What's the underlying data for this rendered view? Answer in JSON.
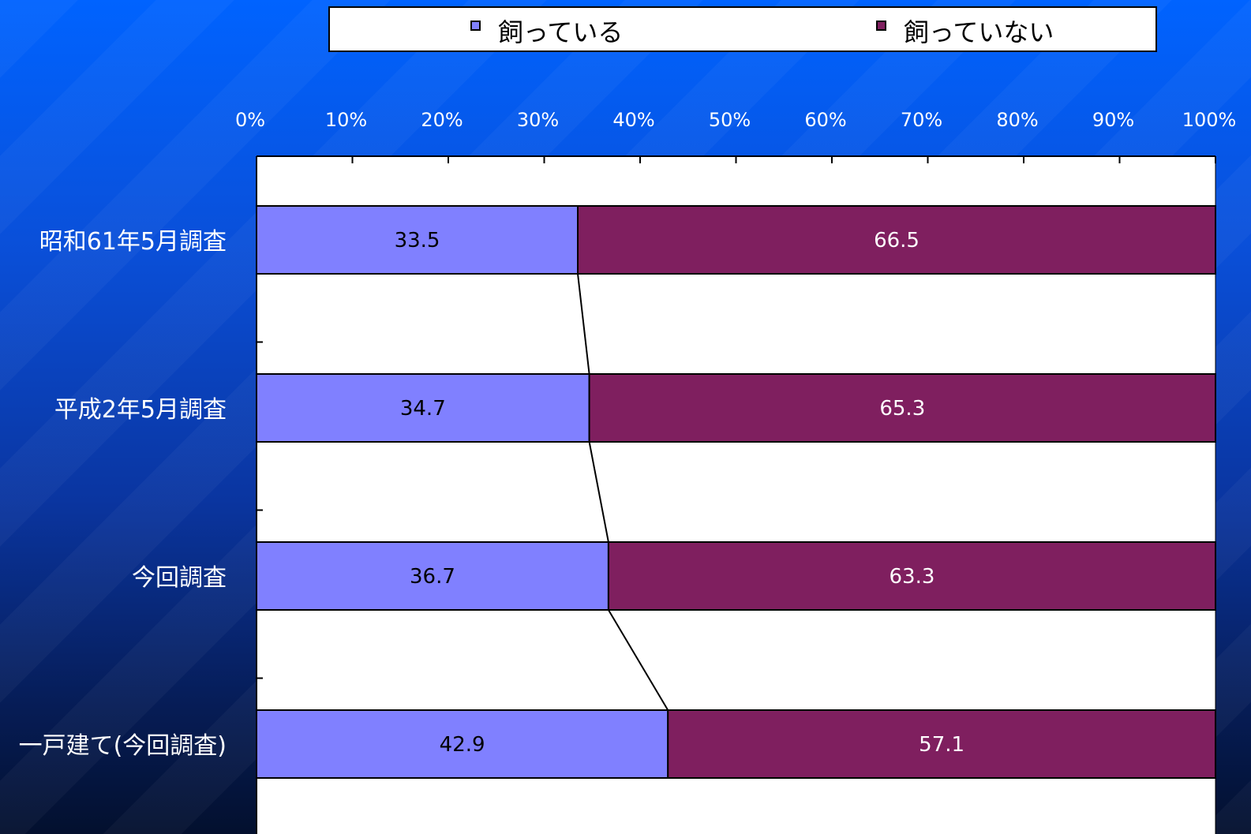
{
  "legend": {
    "items": [
      {
        "label": "飼っている",
        "color": "#8080ff"
      },
      {
        "label": "飼っていない",
        "color": "#7f1f5f"
      }
    ]
  },
  "chart_data": {
    "type": "bar",
    "orientation": "horizontal",
    "stacked": "100%",
    "categories": [
      "昭和61年5月調査",
      "平成2年5月調査",
      "今回調査",
      "一戸建て(今回調査)"
    ],
    "series": [
      {
        "name": "飼っている",
        "values": [
          33.5,
          34.7,
          36.7,
          42.9
        ],
        "color": "#8080ff"
      },
      {
        "name": "飼っていない",
        "values": [
          66.5,
          65.3,
          63.3,
          57.1
        ],
        "color": "#7f1f5f"
      }
    ],
    "xlim": [
      0,
      100
    ],
    "xticks": [
      "0%",
      "10%",
      "20%",
      "30%",
      "40%",
      "50%",
      "60%",
      "70%",
      "80%",
      "90%",
      "100%"
    ],
    "xaxis_position": "top",
    "series_lines": true,
    "legend_position": "top",
    "grid": false
  }
}
